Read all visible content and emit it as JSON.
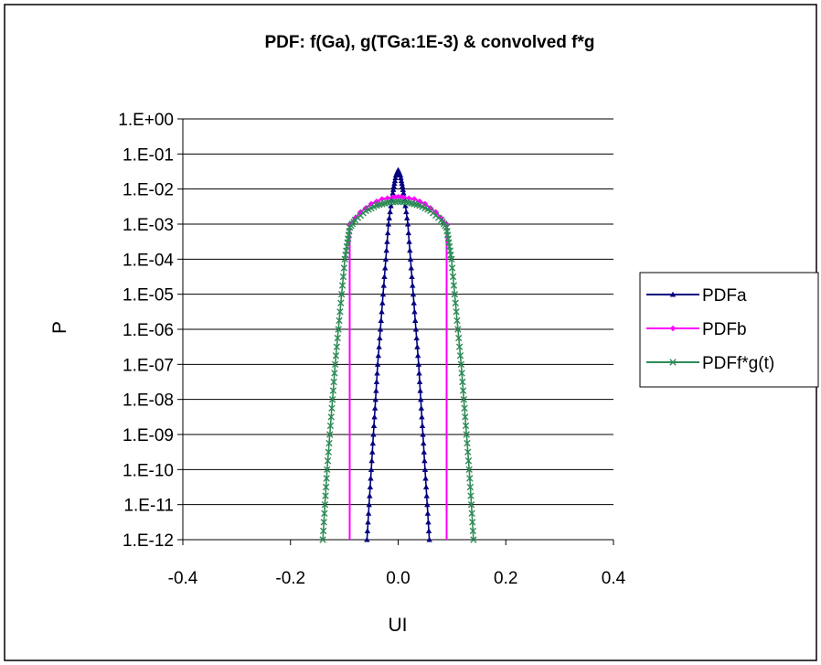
{
  "chart_data": {
    "type": "line",
    "title": "PDF: f(Ga), g(TGa:1E-3) & convolved f*g",
    "xlabel": "UI",
    "ylabel": "P",
    "y_scale": "log",
    "xlim": [
      -0.4,
      0.4
    ],
    "ylim": [
      1e-12,
      1
    ],
    "grid": "horizontal",
    "legend_position": "right",
    "x_ticks": [
      -0.4,
      -0.2,
      0.0,
      0.2,
      0.4
    ],
    "x_tick_labels": [
      "-0.4",
      "-0.2",
      "0.0",
      "0.2",
      "0.4"
    ],
    "y_ticks": [
      1,
      0.1,
      0.01,
      0.001,
      0.0001,
      1e-05,
      1e-06,
      1e-07,
      1e-08,
      1e-09,
      1e-10,
      1e-11,
      1e-12
    ],
    "y_tick_labels": [
      "1.E+00",
      "1.E-01",
      "1.E-02",
      "1.E-03",
      "1.E-04",
      "1.E-05",
      "1.E-06",
      "1.E-07",
      "1.E-08",
      "1.E-09",
      "1.E-10",
      "1.E-11",
      "1.E-12"
    ],
    "series": [
      {
        "name": "PDFa",
        "color": "#000080",
        "marker": "triangle",
        "points": [
          [
            -0.058,
            1e-12
          ],
          [
            -0.054,
            1e-11
          ],
          [
            -0.05,
            1e-10
          ],
          [
            -0.046,
            1e-09
          ],
          [
            -0.042,
            1e-08
          ],
          [
            -0.038,
            1e-07
          ],
          [
            -0.033,
            1e-06
          ],
          [
            -0.028,
            1e-05
          ],
          [
            -0.023,
            0.0001
          ],
          [
            -0.018,
            0.001
          ],
          [
            -0.012,
            0.005
          ],
          [
            -0.008,
            0.012
          ],
          [
            -0.004,
            0.025
          ],
          [
            0.0,
            0.035
          ],
          [
            0.004,
            0.025
          ],
          [
            0.008,
            0.012
          ],
          [
            0.012,
            0.005
          ],
          [
            0.018,
            0.001
          ],
          [
            0.023,
            0.0001
          ],
          [
            0.028,
            1e-05
          ],
          [
            0.033,
            1e-06
          ],
          [
            0.038,
            1e-07
          ],
          [
            0.042,
            1e-08
          ],
          [
            0.046,
            1e-09
          ],
          [
            0.05,
            1e-10
          ],
          [
            0.054,
            1e-11
          ],
          [
            0.058,
            1e-12
          ]
        ]
      },
      {
        "name": "PDFb",
        "color": "#FF00FF",
        "marker": "diamond",
        "points": [
          [
            -0.09,
            1e-12
          ],
          [
            -0.09,
            0.001
          ],
          [
            -0.07,
            0.0022
          ],
          [
            -0.05,
            0.0038
          ],
          [
            -0.03,
            0.0052
          ],
          [
            -0.01,
            0.0058
          ],
          [
            0.0,
            0.006
          ],
          [
            0.01,
            0.0058
          ],
          [
            0.03,
            0.0052
          ],
          [
            0.05,
            0.0038
          ],
          [
            0.07,
            0.0022
          ],
          [
            0.09,
            0.001
          ],
          [
            0.09,
            1e-12
          ]
        ]
      },
      {
        "name": "PDFf*g(t)",
        "color": "#2E8B57",
        "marker": "x",
        "points": [
          [
            -0.14,
            1e-12
          ],
          [
            -0.136,
            1e-11
          ],
          [
            -0.132,
            1e-10
          ],
          [
            -0.127,
            1e-09
          ],
          [
            -0.122,
            1e-08
          ],
          [
            -0.117,
            1e-07
          ],
          [
            -0.111,
            1e-06
          ],
          [
            -0.105,
            1e-05
          ],
          [
            -0.099,
            0.0001
          ],
          [
            -0.094,
            0.0003
          ],
          [
            -0.09,
            0.0008
          ],
          [
            -0.08,
            0.0013
          ],
          [
            -0.06,
            0.0024
          ],
          [
            -0.04,
            0.0034
          ],
          [
            -0.02,
            0.0041
          ],
          [
            0.0,
            0.0044
          ],
          [
            0.02,
            0.0041
          ],
          [
            0.04,
            0.0034
          ],
          [
            0.06,
            0.0024
          ],
          [
            0.08,
            0.0013
          ],
          [
            0.09,
            0.0008
          ],
          [
            0.094,
            0.0003
          ],
          [
            0.099,
            0.0001
          ],
          [
            0.105,
            1e-05
          ],
          [
            0.111,
            1e-06
          ],
          [
            0.117,
            1e-07
          ],
          [
            0.122,
            1e-08
          ],
          [
            0.127,
            1e-09
          ],
          [
            0.132,
            1e-10
          ],
          [
            0.136,
            1e-11
          ],
          [
            0.14,
            1e-12
          ]
        ]
      }
    ]
  }
}
